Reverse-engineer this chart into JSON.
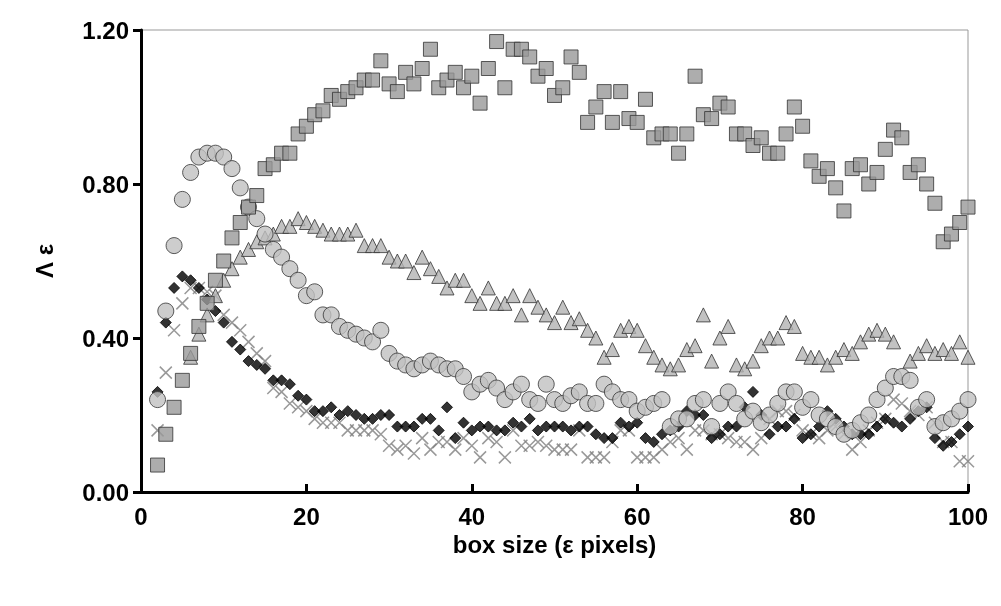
{
  "chart_data": {
    "type": "scatter",
    "xlabel": "box size (ε pixels)",
    "ylabel": "Λ ε",
    "x": [
      2,
      3,
      4,
      5,
      6,
      7,
      8,
      9,
      10,
      11,
      12,
      13,
      14,
      15,
      16,
      17,
      18,
      19,
      20,
      21,
      22,
      23,
      24,
      25,
      26,
      27,
      28,
      29,
      30,
      31,
      32,
      33,
      34,
      35,
      36,
      37,
      38,
      39,
      40,
      41,
      42,
      43,
      44,
      45,
      46,
      47,
      48,
      49,
      50,
      51,
      52,
      53,
      54,
      55,
      56,
      57,
      58,
      59,
      60,
      61,
      62,
      63,
      64,
      65,
      66,
      67,
      68,
      69,
      70,
      71,
      72,
      73,
      74,
      75,
      76,
      77,
      78,
      79,
      80,
      81,
      82,
      83,
      84,
      85,
      86,
      87,
      88,
      89,
      90,
      91,
      92,
      93,
      94,
      95,
      96,
      97,
      98,
      99,
      100
    ],
    "xlim": [
      0,
      100
    ],
    "xticks": [
      0,
      20,
      40,
      60,
      80,
      100
    ],
    "ylim": [
      0,
      1.2
    ],
    "yticks": [
      {
        "value": 0,
        "label": "0.00"
      },
      {
        "value": 0.4,
        "label": "0.40"
      },
      {
        "value": 0.8,
        "label": "0.80"
      },
      {
        "value": 1.2,
        "label": "1.20"
      }
    ],
    "grid": false,
    "series": [
      {
        "marker": "cross",
        "color": "#808080",
        "values": [
          0.16,
          0.31,
          0.42,
          0.49,
          0.53,
          0.53,
          0.52,
          0.51,
          0.46,
          0.44,
          0.42,
          0.39,
          0.36,
          0.34,
          0.27,
          0.26,
          0.23,
          0.22,
          0.21,
          0.19,
          0.18,
          0.18,
          0.18,
          0.16,
          0.16,
          0.16,
          0.16,
          0.15,
          0.12,
          0.11,
          0.12,
          0.1,
          0.14,
          0.11,
          0.13,
          0.13,
          0.11,
          0.14,
          0.12,
          0.09,
          0.14,
          0.13,
          0.09,
          0.16,
          0.12,
          0.12,
          0.13,
          0.12,
          0.11,
          0.11,
          0.11,
          0.16,
          0.09,
          0.09,
          0.09,
          0.13,
          0.16,
          0.16,
          0.09,
          0.09,
          0.09,
          0.11,
          0.13,
          0.14,
          0.11,
          0.16,
          0.16,
          0.15,
          0.15,
          0.14,
          0.13,
          0.13,
          0.11,
          0.14,
          0.19,
          0.21,
          0.21,
          0.2,
          0.16,
          0.15,
          0.14,
          0.16,
          0.17,
          0.15,
          0.11,
          0.13,
          0.16,
          0.18,
          0.19,
          0.24,
          0.23,
          0.21,
          0.2,
          0.22,
          0.18,
          0.13,
          0.13,
          0.08,
          0.08
        ]
      },
      {
        "marker": "diamond",
        "color": "#000000",
        "values": [
          0.26,
          0.44,
          0.53,
          0.56,
          0.55,
          0.53,
          0.5,
          0.47,
          0.44,
          0.39,
          0.37,
          0.34,
          0.33,
          0.32,
          0.29,
          0.29,
          0.28,
          0.25,
          0.24,
          0.21,
          0.21,
          0.22,
          0.2,
          0.21,
          0.2,
          0.19,
          0.19,
          0.2,
          0.2,
          0.17,
          0.17,
          0.17,
          0.19,
          0.19,
          0.16,
          0.22,
          0.14,
          0.18,
          0.16,
          0.17,
          0.17,
          0.16,
          0.16,
          0.18,
          0.17,
          0.19,
          0.16,
          0.17,
          0.17,
          0.17,
          0.16,
          0.17,
          0.17,
          0.15,
          0.14,
          0.14,
          0.18,
          0.17,
          0.18,
          0.14,
          0.13,
          0.15,
          0.16,
          0.17,
          0.21,
          0.2,
          0.2,
          0.14,
          0.15,
          0.17,
          0.17,
          0.22,
          0.26,
          0.2,
          0.15,
          0.17,
          0.17,
          0.19,
          0.14,
          0.15,
          0.17,
          0.21,
          0.19,
          0.17,
          0.15,
          0.15,
          0.15,
          0.17,
          0.19,
          0.18,
          0.17,
          0.19,
          0.21,
          0.22,
          0.14,
          0.12,
          0.13,
          0.15,
          0.17
        ]
      },
      {
        "marker": "triangle",
        "color": "#b3b3b3",
        "values": [
          null,
          null,
          null,
          null,
          0.35,
          0.41,
          0.46,
          0.51,
          0.55,
          0.58,
          0.61,
          0.63,
          0.65,
          0.66,
          0.67,
          0.69,
          0.69,
          0.71,
          0.7,
          0.69,
          0.68,
          0.67,
          0.67,
          0.67,
          0.68,
          0.64,
          0.64,
          0.64,
          0.61,
          0.6,
          0.6,
          0.57,
          0.61,
          0.58,
          0.56,
          0.53,
          0.55,
          0.55,
          0.51,
          0.49,
          0.53,
          0.49,
          0.49,
          0.51,
          0.46,
          0.51,
          0.48,
          0.46,
          0.44,
          0.48,
          0.44,
          0.45,
          0.42,
          0.4,
          0.35,
          0.37,
          0.42,
          0.43,
          0.42,
          0.38,
          0.35,
          0.33,
          0.32,
          0.33,
          0.37,
          0.38,
          0.46,
          0.34,
          0.4,
          0.43,
          0.33,
          0.32,
          0.34,
          0.38,
          0.4,
          0.4,
          0.44,
          0.43,
          0.36,
          0.35,
          0.35,
          0.33,
          0.35,
          0.37,
          0.36,
          0.39,
          0.41,
          0.42,
          0.41,
          0.39,
          null,
          0.34,
          0.36,
          0.38,
          0.36,
          0.37,
          0.36,
          0.39,
          0.35
        ]
      },
      {
        "marker": "circle",
        "color": "#c0c0c0",
        "values": [
          0.24,
          0.47,
          0.64,
          0.76,
          0.83,
          0.87,
          0.88,
          0.88,
          0.87,
          0.84,
          0.79,
          0.74,
          0.71,
          0.67,
          0.63,
          0.61,
          0.58,
          0.55,
          0.51,
          0.52,
          0.46,
          0.46,
          0.43,
          0.42,
          0.41,
          0.4,
          0.39,
          0.42,
          0.36,
          0.34,
          0.33,
          0.32,
          0.33,
          0.34,
          0.33,
          0.32,
          0.32,
          0.3,
          0.26,
          0.28,
          0.29,
          0.27,
          0.24,
          0.26,
          0.28,
          0.24,
          0.23,
          0.28,
          0.24,
          0.23,
          0.25,
          0.26,
          0.23,
          0.23,
          0.28,
          0.26,
          0.24,
          0.24,
          0.21,
          0.22,
          0.23,
          0.24,
          0.17,
          0.19,
          0.19,
          0.23,
          0.24,
          0.17,
          0.23,
          0.26,
          0.23,
          0.19,
          0.21,
          0.18,
          0.2,
          0.23,
          0.26,
          0.26,
          0.22,
          0.24,
          0.2,
          0.19,
          0.17,
          0.15,
          0.16,
          0.18,
          0.2,
          0.24,
          0.27,
          0.3,
          0.3,
          0.29,
          0.22,
          0.24,
          0.17,
          0.18,
          0.19,
          0.21,
          0.24
        ]
      },
      {
        "marker": "square",
        "color": "#999999",
        "values": [
          0.07,
          0.15,
          0.22,
          0.29,
          0.36,
          0.43,
          0.49,
          0.55,
          0.6,
          0.66,
          0.7,
          0.74,
          0.77,
          0.84,
          0.85,
          0.88,
          0.88,
          0.93,
          0.95,
          0.98,
          0.99,
          1.03,
          1.02,
          1.04,
          1.05,
          1.07,
          1.07,
          1.12,
          1.06,
          1.04,
          1.09,
          1.06,
          1.1,
          1.15,
          1.05,
          1.07,
          1.09,
          1.05,
          1.08,
          1.01,
          1.1,
          1.17,
          1.05,
          1.15,
          1.15,
          1.13,
          1.08,
          1.1,
          1.03,
          1.05,
          1.13,
          1.09,
          0.96,
          1.0,
          1.04,
          0.96,
          1.04,
          0.97,
          0.96,
          1.02,
          0.92,
          0.93,
          0.93,
          0.88,
          0.93,
          1.08,
          0.98,
          0.97,
          1.01,
          1.0,
          0.93,
          0.93,
          0.9,
          0.92,
          0.88,
          0.88,
          0.93,
          1.0,
          0.95,
          0.86,
          0.82,
          0.84,
          0.79,
          0.73,
          0.84,
          0.85,
          0.8,
          0.83,
          0.89,
          0.94,
          0.92,
          0.83,
          0.85,
          0.8,
          0.75,
          0.65,
          0.67,
          0.7,
          0.74
        ]
      }
    ]
  }
}
